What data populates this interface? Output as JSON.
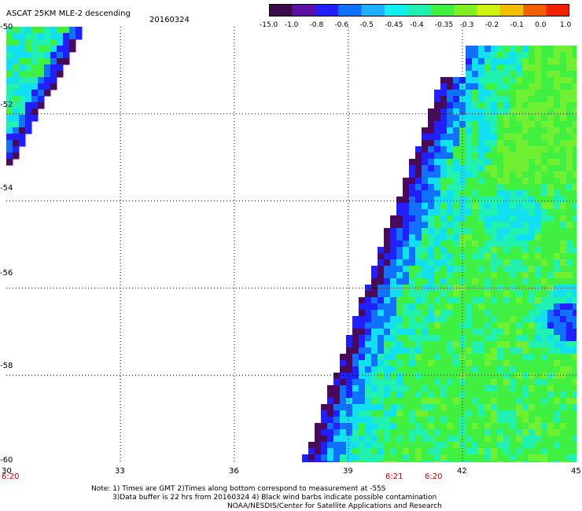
{
  "header": {
    "title": "ASCAT 25KM MLE-2 descending",
    "date": "20160324"
  },
  "colorbar": {
    "labels": [
      "-15.0",
      "-1.0",
      "-0.8",
      "-0.6",
      "-0.5",
      "-0.45",
      "-0.4",
      "-0.35",
      "-0.3",
      "-0.2",
      "-0.1",
      "0.0",
      "1.0"
    ],
    "colors": [
      "#3a0a4a",
      "#5a10a0",
      "#2020ff",
      "#1070ff",
      "#20b0ff",
      "#10f0f0",
      "#20f0b0",
      "#40f040",
      "#80f020",
      "#d0f010",
      "#f0c000",
      "#f06000",
      "#f02000"
    ]
  },
  "axes": {
    "lat_labels": [
      "-50",
      "-52",
      "-54",
      "-56",
      "-58",
      "-60"
    ],
    "lon_labels": [
      "30",
      "33",
      "36",
      "39",
      "42",
      "45"
    ]
  },
  "times": {
    "t1": "6:20",
    "t2": "6:21",
    "t3": "6:20"
  },
  "notes": {
    "line1": "Note: 1) Times are GMT 2)Times along bottom correspond to measurement at -55S",
    "line2": "3)Data buffer is 22 hrs from 20160324 4) Black wind barbs indicate possible contamination",
    "line3": "NOAA/NESDIS/Center for Satellite Applications and Research"
  }
}
